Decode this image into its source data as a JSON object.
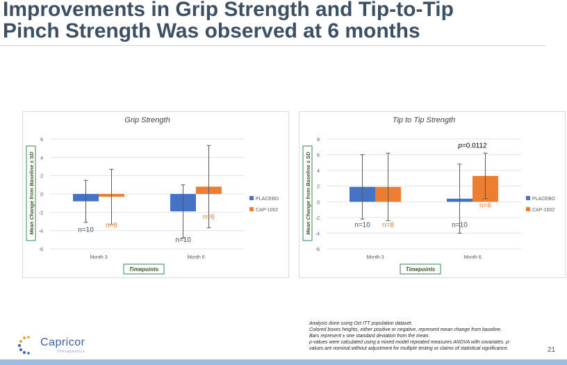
{
  "title_line1": "Improvements in Grip Strength and Tip-to-Tip",
  "title_line2": "Pinch Strength Was observed at 6 months",
  "chart_data": [
    {
      "type": "bar",
      "title": "Grip Strength",
      "xlabel": "Timepoints",
      "ylabel": "Mean Change from Baseline ± SD",
      "categories": [
        "Month 3",
        "Month 6"
      ],
      "ylim": [
        -6,
        6
      ],
      "yticks": [
        -6,
        -4,
        -2,
        0,
        2,
        4,
        6
      ],
      "legend_position": "right",
      "series": [
        {
          "name": "PLACEBO",
          "color": "#4472c4",
          "values": [
            -0.8,
            -1.9
          ],
          "err_low": [
            -3.1,
            -4.8
          ],
          "err_high": [
            1.5,
            1.0
          ],
          "n_labels": [
            "n=10",
            "n=10"
          ]
        },
        {
          "name": "CAP-1002",
          "color": "#ed7d31",
          "values": [
            -0.3,
            0.8
          ],
          "err_low": [
            -3.3,
            -3.7
          ],
          "err_high": [
            2.7,
            5.3
          ],
          "n_labels": [
            "n=8",
            "n=6"
          ]
        }
      ],
      "annotations": []
    },
    {
      "type": "bar",
      "title": "Tip to Tip Strength",
      "xlabel": "Timepoints",
      "ylabel": "Mean Change from Baseline ± SD",
      "categories": [
        "Month 3",
        "Month 6"
      ],
      "ylim": [
        -6,
        8
      ],
      "yticks": [
        -6,
        -4,
        -2,
        0,
        2,
        4,
        6,
        8
      ],
      "legend_position": "right",
      "series": [
        {
          "name": "PLACEBO",
          "color": "#4472c4",
          "values": [
            1.9,
            0.4
          ],
          "err_low": [
            -2.2,
            -4.0
          ],
          "err_high": [
            6.0,
            4.8
          ],
          "n_labels": [
            "n=10",
            "n=10"
          ]
        },
        {
          "name": "CAP-1002",
          "color": "#ed7d31",
          "values": [
            1.9,
            3.3
          ],
          "err_low": [
            -2.4,
            0.4
          ],
          "err_high": [
            6.2,
            6.2
          ],
          "n_labels": [
            "n=8",
            "n=6"
          ]
        }
      ],
      "annotations": [
        {
          "text_italic": "p",
          "text": "=0.0112",
          "category": "Month 6"
        }
      ]
    }
  ],
  "footnotes": [
    "Analysis done using Oct ITT population dataset.",
    "Colored boxes heights, either positive or negative, represent mean change from baseline.",
    "Bars represent ± one standard deviation from the mean.",
    "p-values were calculated using a mixed model repeated measures ANOVA with covariates. p-",
    "values are nominal without adjustment for multiple testing or claims of statistical significance."
  ],
  "logo": {
    "name": "Capricor",
    "sub": "Therapeutics"
  },
  "page_number": "21"
}
